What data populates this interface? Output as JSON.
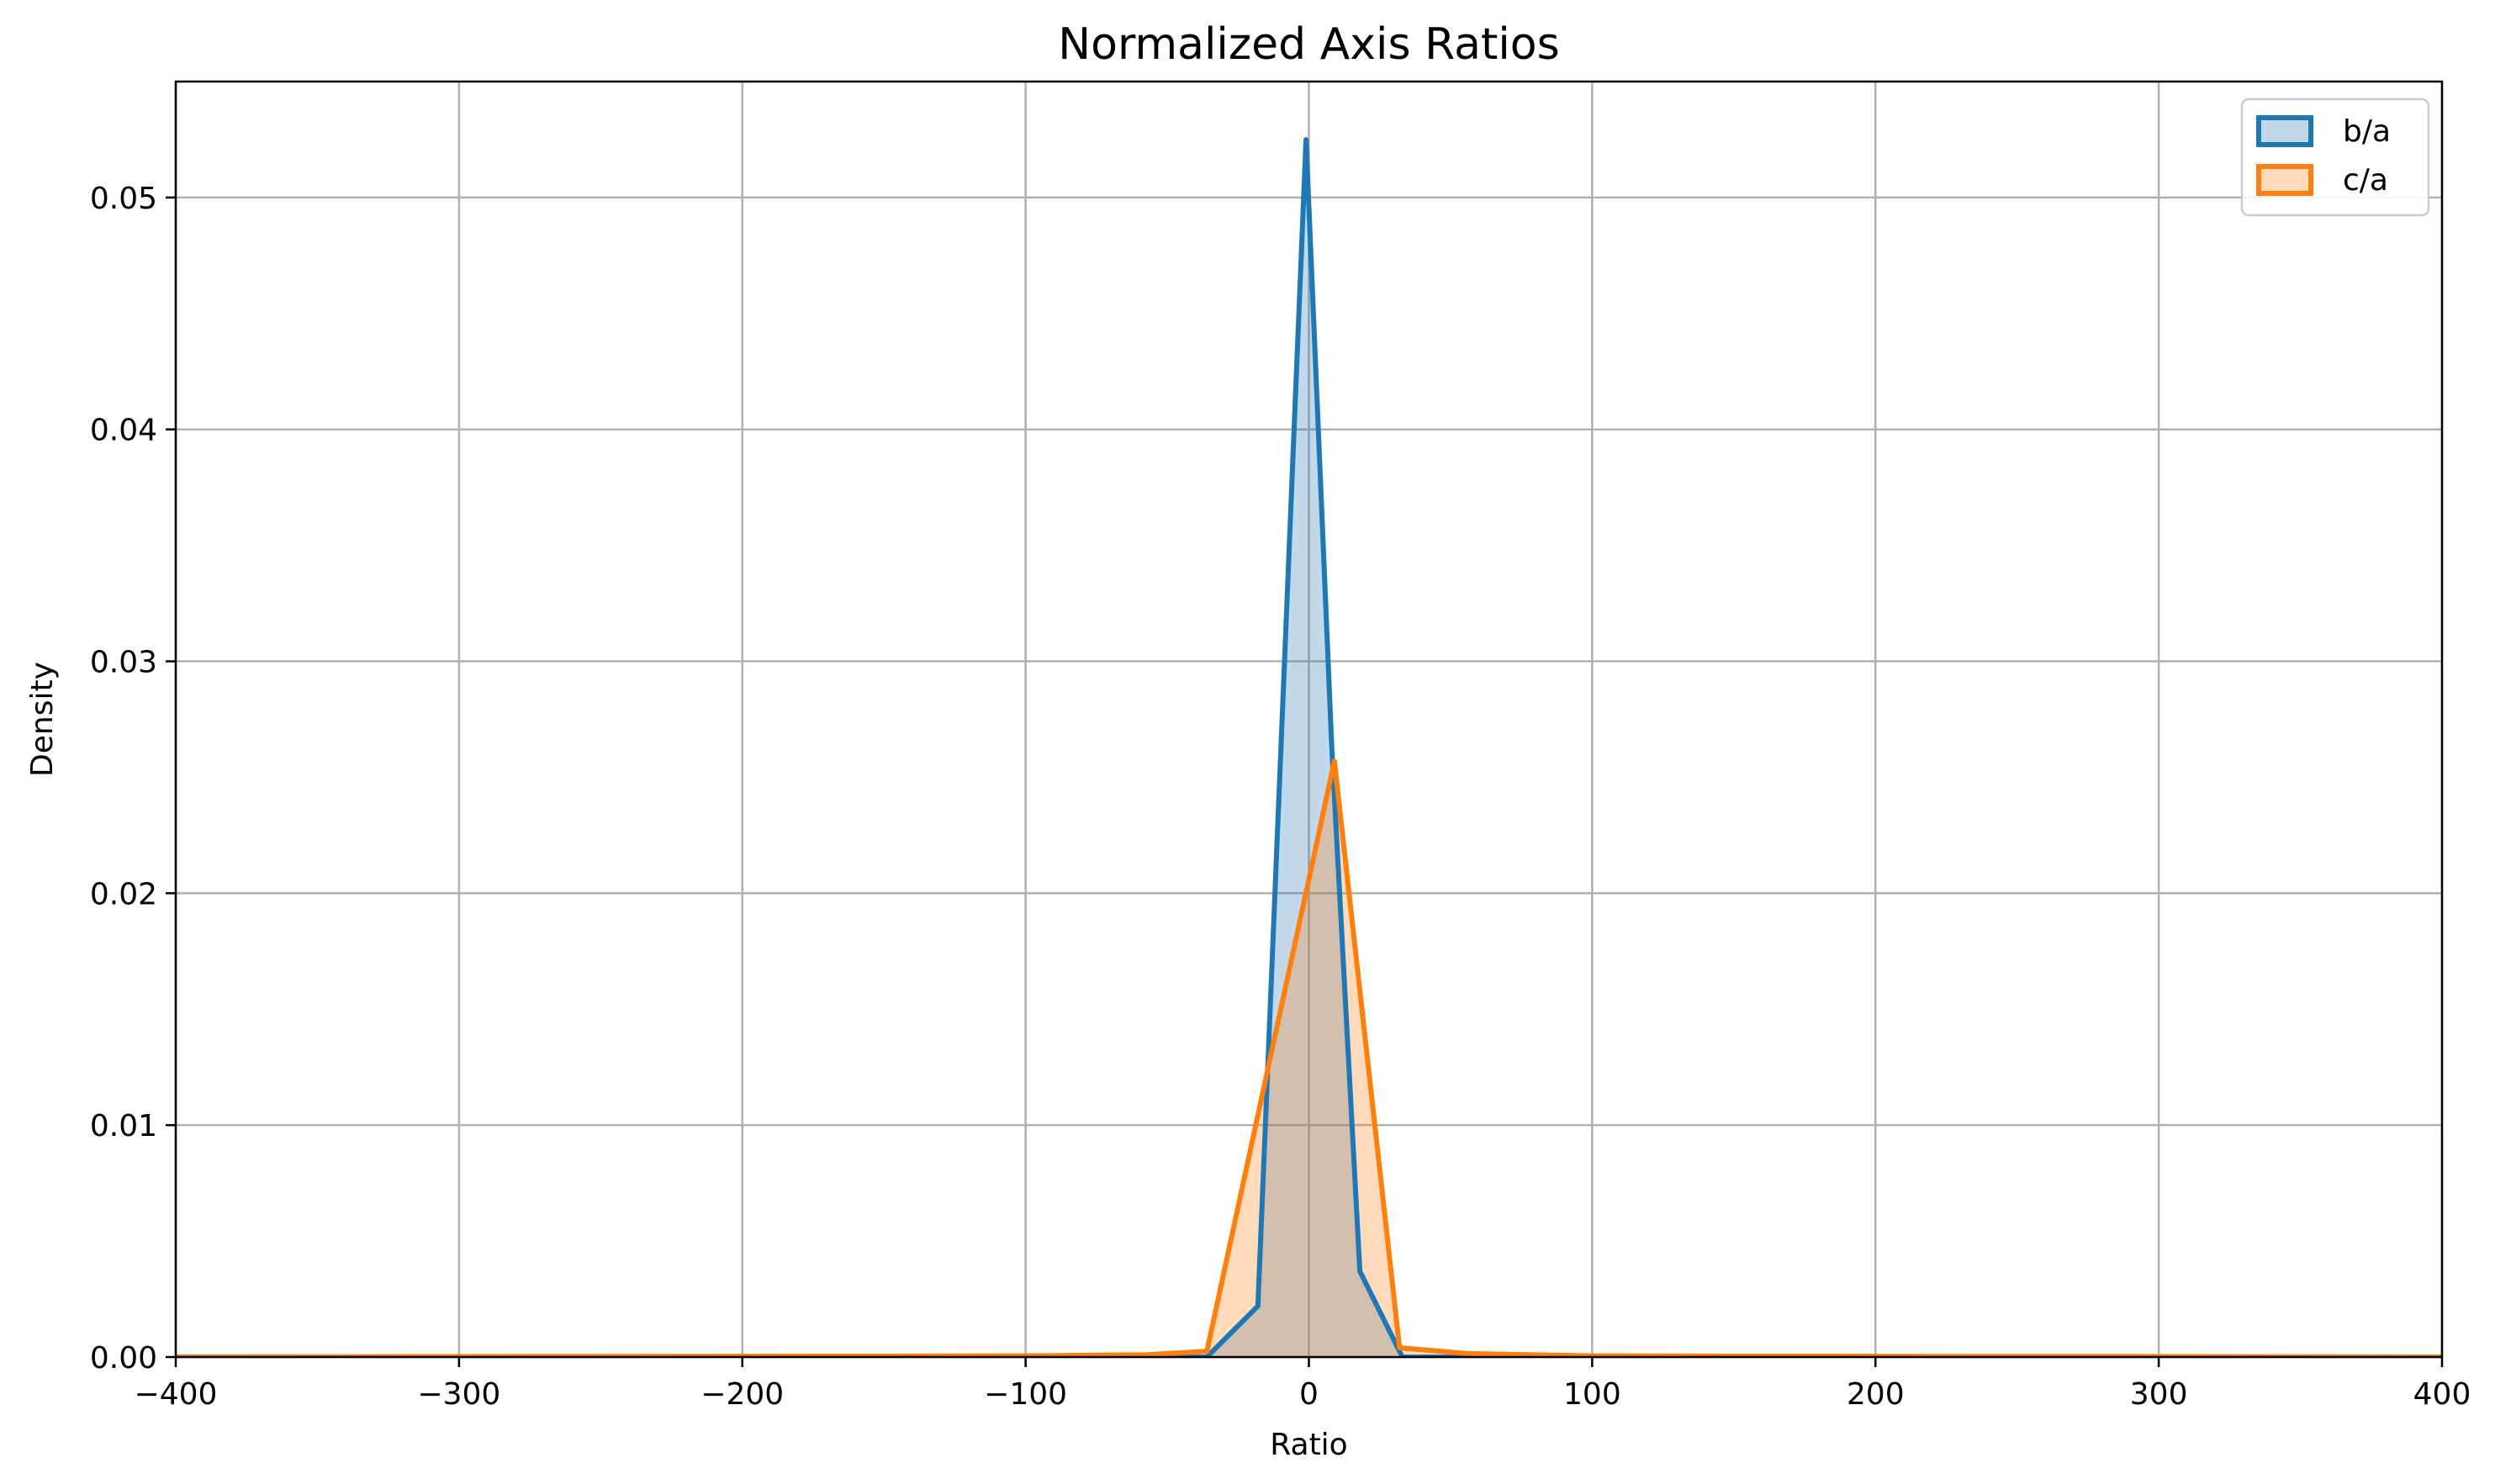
{
  "chart_data": {
    "type": "area",
    "title": "Normalized Axis Ratios",
    "xlabel": "Ratio",
    "ylabel": "Density",
    "xlim": [
      -400,
      400
    ],
    "ylim": [
      0,
      0.055
    ],
    "xticks": [
      -400,
      -300,
      -200,
      -100,
      0,
      100,
      200,
      300,
      400
    ],
    "xtick_labels": [
      "−400",
      "−300",
      "−200",
      "−100",
      "0",
      "100",
      "200",
      "300",
      "400"
    ],
    "yticks": [
      0,
      0.01,
      0.02,
      0.03,
      0.04,
      0.05
    ],
    "ytick_labels": [
      "0.00",
      "0.01",
      "0.02",
      "0.03",
      "0.04",
      "0.05"
    ],
    "grid": true,
    "legend_position": "top-right",
    "series": [
      {
        "name": "b/a",
        "color": "#1f77b4",
        "fill": "#1f77b4",
        "x": [
          -400,
          -300,
          -200,
          -100,
          -60,
          -36,
          -18,
          -1,
          8,
          18,
          33,
          60,
          100,
          200,
          300,
          400
        ],
        "y": [
          0.0,
          0.0,
          0.0,
          0.0,
          0.0,
          0.0,
          0.0022,
          0.0525,
          0.0265,
          0.0037,
          0.0,
          0.0,
          0.0,
          0.0,
          0.0,
          0.0
        ]
      },
      {
        "name": "c/a",
        "color": "#ff7f0e",
        "fill": "#ff7f0e",
        "x": [
          -400,
          -300,
          -200,
          -100,
          -57,
          -36,
          9,
          32,
          56,
          100,
          200,
          300,
          400
        ],
        "y": [
          0.0,
          2e-05,
          3e-05,
          5e-05,
          0.0001,
          0.00025,
          0.0257,
          0.0004,
          0.00015,
          5e-05,
          3e-05,
          2e-05,
          0.0
        ]
      }
    ]
  }
}
